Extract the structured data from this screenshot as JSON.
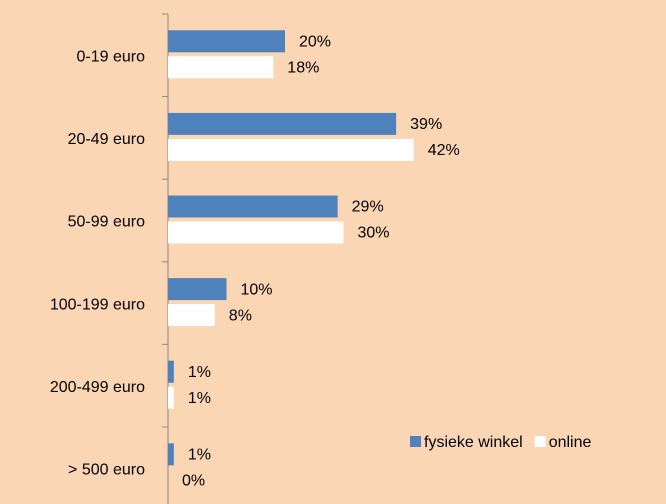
{
  "chart_data": {
    "type": "hbar",
    "categories": [
      "0-19 euro",
      "20-49 euro",
      "50-99 euro",
      "100-199 euro",
      "200-499 euro",
      "> 500 euro"
    ],
    "series": [
      {
        "name": "fysieke winkel",
        "color": "#4f81bd",
        "values": [
          20,
          39,
          29,
          10,
          1,
          1
        ],
        "value_labels": [
          "20%",
          "39%",
          "29%",
          "10%",
          "1%",
          "1%"
        ]
      },
      {
        "name": "online",
        "color": "#ffffff",
        "values": [
          18,
          42,
          30,
          8,
          1,
          0
        ],
        "value_labels": [
          "18%",
          "42%",
          "30%",
          "8%",
          "1%",
          "0%"
        ]
      }
    ],
    "legend": "lower right"
  }
}
